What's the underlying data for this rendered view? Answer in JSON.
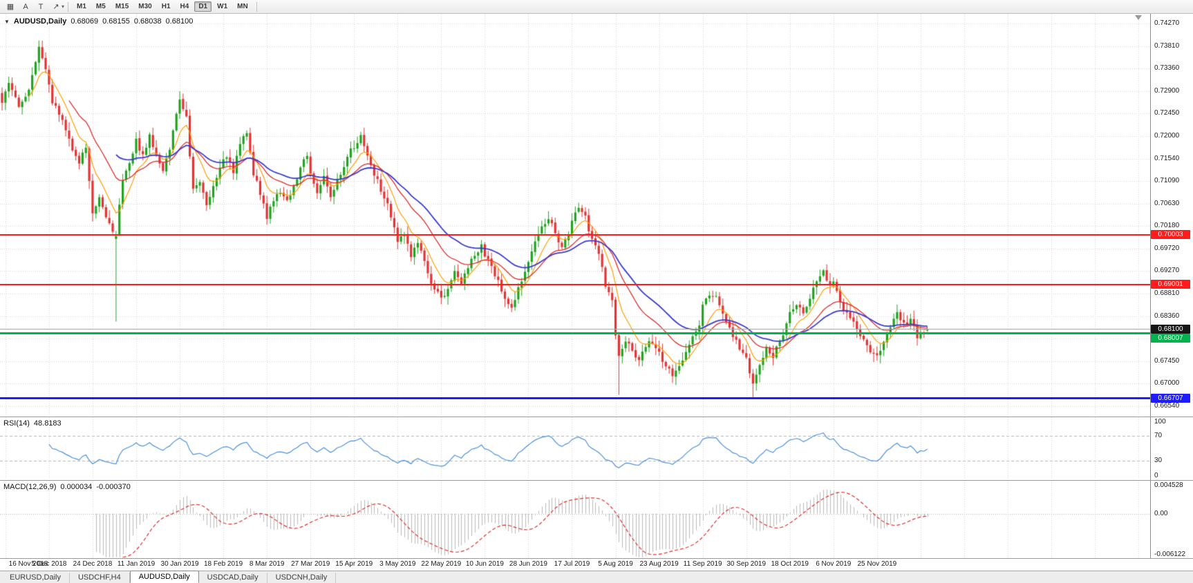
{
  "toolbar": {
    "icons": [
      {
        "name": "chart-grid-icon",
        "glyph": "▦"
      },
      {
        "name": "cursor-a-icon",
        "glyph": "A"
      },
      {
        "name": "text-t-icon",
        "glyph": "T"
      },
      {
        "name": "draw-objects-icon",
        "glyph": "↗"
      }
    ],
    "caret_icon": "▾",
    "timeframes": [
      "M1",
      "M5",
      "M15",
      "M30",
      "H1",
      "H4",
      "D1",
      "W1",
      "MN"
    ],
    "active_timeframe": "D1"
  },
  "chart": {
    "header": {
      "dropdown_icon": "▼",
      "title": "AUDUSD,Daily",
      "open": "0.68069",
      "high": "0.68155",
      "low": "0.68038",
      "close": "0.68100"
    },
    "levels": [
      {
        "label": "0.70003",
        "price": 0.70003,
        "color": "#ff1c1c",
        "thickness": 2
      },
      {
        "label": "0.69001",
        "price": 0.69001,
        "color": "#ff1c1c",
        "thickness": 2
      },
      {
        "label": "0.68007",
        "price": 0.68007,
        "color": "#00b34d",
        "thickness": 3
      },
      {
        "label": "0.66707",
        "price": 0.66707,
        "color": "#1d1dff",
        "thickness": 3
      }
    ],
    "current_price": {
      "label": "0.68100",
      "value": 0.681,
      "line_color": "#a8a8a8",
      "badge_bg": "#161616"
    },
    "colors": {
      "bull": "#1fa31f",
      "bear": "#e23333",
      "grid": "#d6d6d6",
      "background": "#ffffff"
    }
  },
  "chart_data": {
    "type": "candlestick",
    "symbol": "AUDUSD",
    "timeframe": "Daily",
    "current_ohlc": {
      "open": 0.68069,
      "high": 0.68155,
      "low": 0.68038,
      "close": 0.681
    },
    "ylim": [
      0.66346,
      0.74465
    ],
    "y_ticks": [
      "0.74270",
      "0.73810",
      "0.73360",
      "0.72900",
      "0.72450",
      "0.72000",
      "0.71540",
      "0.71090",
      "0.70630",
      "0.70180",
      "0.69720",
      "0.69270",
      "0.68810",
      "0.68360",
      "0.67910",
      "0.67450",
      "0.67000",
      "0.66540"
    ],
    "x_labels": [
      "16 Nov 2018",
      "5 Dec 2018",
      "24 Dec 2018",
      "11 Jan 2019",
      "30 Jan 2019",
      "18 Feb 2019",
      "8 Mar 2019",
      "27 Mar 2019",
      "15 Apr 2019",
      "3 May 2019",
      "22 May 2019",
      "10 Jun 2019",
      "28 Jun 2019",
      "17 Jul 2019",
      "5 Aug 2019",
      "23 Aug 2019",
      "11 Sep 2019",
      "30 Sep 2019",
      "18 Oct 2019",
      "6 Nov 2019",
      "25 Nov 2019"
    ],
    "num_candles": 277,
    "first_label_candle": 1,
    "label_step_candles": 13,
    "horizontal_levels": [
      0.70003,
      0.69001,
      0.68007,
      0.66707
    ],
    "moving_averages": [
      {
        "period": 8,
        "color": "#ff9d00",
        "width": 1.2
      },
      {
        "period": 20,
        "color": "#dd2c2c",
        "width": 1.3
      },
      {
        "period": 34,
        "color": "#3a3ad0",
        "width": 1.8
      }
    ],
    "close_anchors": [
      [
        0,
        0.727
      ],
      [
        2,
        0.7305
      ],
      [
        5,
        0.726
      ],
      [
        8,
        0.729
      ],
      [
        11,
        0.738
      ],
      [
        13,
        0.733
      ],
      [
        15,
        0.727
      ],
      [
        18,
        0.723
      ],
      [
        21,
        0.7175
      ],
      [
        23,
        0.7145
      ],
      [
        25,
        0.718
      ],
      [
        27,
        0.7045
      ],
      [
        29,
        0.7075
      ],
      [
        31,
        0.7035
      ],
      [
        33,
        0.701
      ],
      [
        34,
        0.6998
      ],
      [
        36,
        0.7115
      ],
      [
        38,
        0.7145
      ],
      [
        40,
        0.719
      ],
      [
        42,
        0.716
      ],
      [
        44,
        0.72
      ],
      [
        46,
        0.7165
      ],
      [
        48,
        0.713
      ],
      [
        50,
        0.7175
      ],
      [
        52,
        0.7245
      ],
      [
        53,
        0.727
      ],
      [
        55,
        0.7235
      ],
      [
        57,
        0.709
      ],
      [
        59,
        0.7105
      ],
      [
        61,
        0.706
      ],
      [
        63,
        0.7095
      ],
      [
        65,
        0.7135
      ],
      [
        67,
        0.716
      ],
      [
        69,
        0.713
      ],
      [
        71,
        0.7185
      ],
      [
        73,
        0.7205
      ],
      [
        75,
        0.7125
      ],
      [
        77,
        0.7085
      ],
      [
        79,
        0.7035
      ],
      [
        81,
        0.707
      ],
      [
        83,
        0.709
      ],
      [
        85,
        0.7065
      ],
      [
        87,
        0.71
      ],
      [
        89,
        0.7135
      ],
      [
        91,
        0.716
      ],
      [
        92,
        0.712
      ],
      [
        94,
        0.7085
      ],
      [
        96,
        0.7115
      ],
      [
        98,
        0.7075
      ],
      [
        100,
        0.711
      ],
      [
        102,
        0.7135
      ],
      [
        104,
        0.717
      ],
      [
        107,
        0.72
      ],
      [
        109,
        0.7155
      ],
      [
        111,
        0.7125
      ],
      [
        113,
        0.709
      ],
      [
        115,
        0.706
      ],
      [
        117,
        0.7015
      ],
      [
        118,
        0.699
      ],
      [
        120,
        0.6998
      ],
      [
        122,
        0.696
      ],
      [
        124,
        0.6985
      ],
      [
        126,
        0.6945
      ],
      [
        128,
        0.6905
      ],
      [
        131,
        0.687
      ],
      [
        133,
        0.6895
      ],
      [
        135,
        0.6925
      ],
      [
        137,
        0.6905
      ],
      [
        139,
        0.6935
      ],
      [
        141,
        0.696
      ],
      [
        143,
        0.6978
      ],
      [
        144,
        0.696
      ],
      [
        146,
        0.6935
      ],
      [
        148,
        0.6905
      ],
      [
        150,
        0.6875
      ],
      [
        152,
        0.685
      ],
      [
        154,
        0.689
      ],
      [
        156,
        0.6925
      ],
      [
        157,
        0.6945
      ],
      [
        159,
        0.6985
      ],
      [
        161,
        0.7015
      ],
      [
        163,
        0.7035
      ],
      [
        165,
        0.7005
      ],
      [
        167,
        0.6975
      ],
      [
        169,
        0.7
      ],
      [
        170,
        0.7025
      ],
      [
        172,
        0.7055
      ],
      [
        174,
        0.7035
      ],
      [
        176,
        0.699
      ],
      [
        178,
        0.696
      ],
      [
        180,
        0.69
      ],
      [
        182,
        0.6865
      ],
      [
        183,
        0.68
      ],
      [
        184,
        0.676
      ],
      [
        186,
        0.6785
      ],
      [
        188,
        0.677
      ],
      [
        190,
        0.6745
      ],
      [
        192,
        0.6775
      ],
      [
        194,
        0.6785
      ],
      [
        196,
        0.676
      ],
      [
        198,
        0.6735
      ],
      [
        200,
        0.6715
      ],
      [
        202,
        0.6735
      ],
      [
        204,
        0.676
      ],
      [
        206,
        0.679
      ],
      [
        208,
        0.682
      ],
      [
        209,
        0.686
      ],
      [
        211,
        0.688
      ],
      [
        213,
        0.6875
      ],
      [
        215,
        0.6845
      ],
      [
        217,
        0.681
      ],
      [
        219,
        0.6785
      ],
      [
        221,
        0.676
      ],
      [
        222,
        0.675
      ],
      [
        224,
        0.67
      ],
      [
        226,
        0.6735
      ],
      [
        228,
        0.677
      ],
      [
        230,
        0.6755
      ],
      [
        232,
        0.6785
      ],
      [
        234,
        0.682
      ],
      [
        235,
        0.684
      ],
      [
        237,
        0.686
      ],
      [
        239,
        0.6845
      ],
      [
        241,
        0.6875
      ],
      [
        243,
        0.6905
      ],
      [
        245,
        0.6925
      ],
      [
        247,
        0.6895
      ],
      [
        248,
        0.6905
      ],
      [
        250,
        0.6865
      ],
      [
        252,
        0.684
      ],
      [
        254,
        0.682
      ],
      [
        256,
        0.6795
      ],
      [
        258,
        0.6775
      ],
      [
        260,
        0.676
      ],
      [
        261,
        0.6755
      ],
      [
        263,
        0.6785
      ],
      [
        265,
        0.6815
      ],
      [
        267,
        0.684
      ],
      [
        269,
        0.682
      ],
      [
        271,
        0.683
      ],
      [
        273,
        0.6795
      ],
      [
        275,
        0.6805
      ],
      [
        276,
        0.681
      ]
    ],
    "wick_overrides": [
      {
        "index": 34,
        "open": 0.6992,
        "close": 0.6998,
        "high": 0.7008,
        "low": 0.6825
      },
      {
        "index": 184,
        "low": 0.6677
      },
      {
        "index": 224,
        "low": 0.667
      },
      {
        "index": 245,
        "high": 0.6931
      },
      {
        "index": 276,
        "open": 0.68069,
        "high": 0.68155,
        "low": 0.68038,
        "close": 0.681
      }
    ]
  },
  "rsi": {
    "name": "RSI(14)",
    "value": "48.8183",
    "period": 14,
    "color": "#4a90d9",
    "dashed_levels": [
      70,
      30
    ],
    "scale_labels": [
      {
        "text": "100",
        "value": 100
      },
      {
        "text": "70",
        "value": 70
      },
      {
        "text": "30",
        "value": 30
      },
      {
        "text": "0",
        "value": 0
      }
    ]
  },
  "macd": {
    "name": "MACD(12,26,9)",
    "value": "0.000034",
    "signal_value": "-0.000370",
    "histogram_color": "#b9b9b9",
    "signal_color": "#e03030",
    "ylim": [
      -0.006122,
      0.004528
    ],
    "scale_labels": [
      {
        "text": "0.004528",
        "value": 0.004528
      },
      {
        "text": "0.00",
        "value": 0
      },
      {
        "text": "-0.006122",
        "value": -0.006122
      }
    ]
  },
  "bottom_tabs": {
    "tabs": [
      "EURUSD,Daily",
      "USDCHF,H4",
      "AUDUSD,Daily",
      "USDCAD,Daily",
      "USDCNH,Daily"
    ],
    "active": "AUDUSD,Daily"
  }
}
